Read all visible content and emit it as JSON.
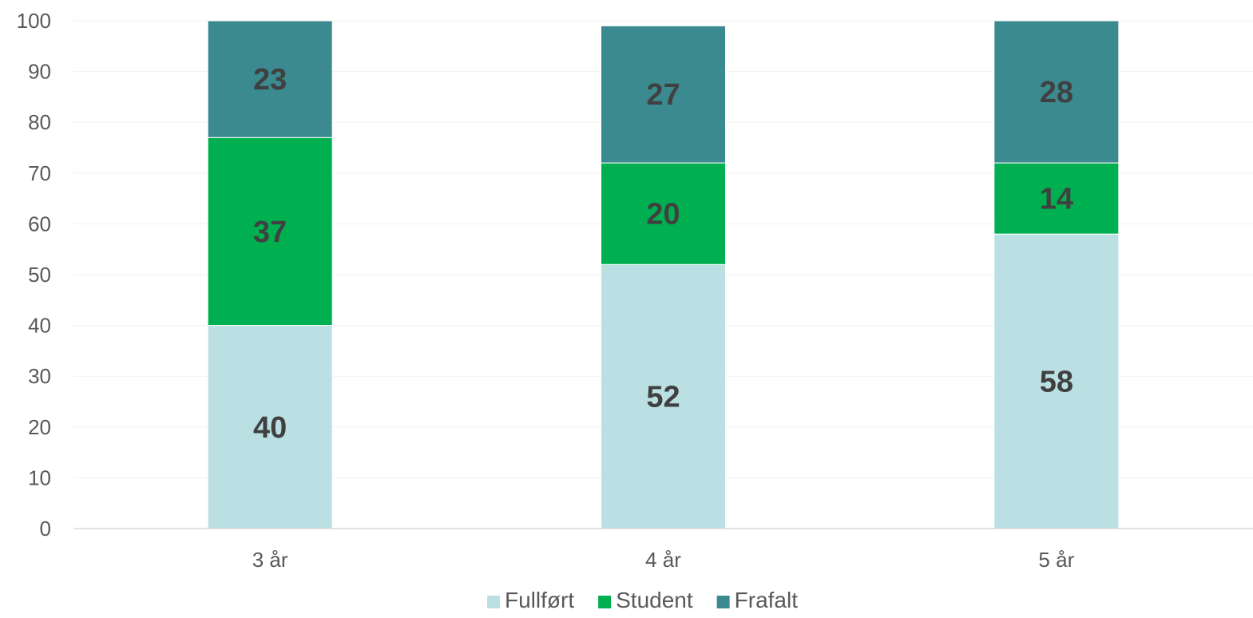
{
  "chart_data": {
    "type": "bar",
    "stacked": true,
    "categories": [
      "3 år",
      "4 år",
      "5 år"
    ],
    "series": [
      {
        "name": "Fullført",
        "values": [
          40,
          52,
          58
        ],
        "color": "#BBE0E3"
      },
      {
        "name": "Student",
        "values": [
          37,
          20,
          14
        ],
        "color": "#00B050"
      },
      {
        "name": "Frafalt",
        "values": [
          23,
          27,
          28
        ],
        "color": "#3B8A90"
      }
    ],
    "ylim": [
      0,
      100
    ],
    "yticks": [
      0,
      10,
      20,
      30,
      40,
      50,
      60,
      70,
      80,
      90,
      100
    ],
    "grid": true,
    "legend": "bottom-center",
    "title": "",
    "xlabel": "",
    "ylabel": ""
  }
}
